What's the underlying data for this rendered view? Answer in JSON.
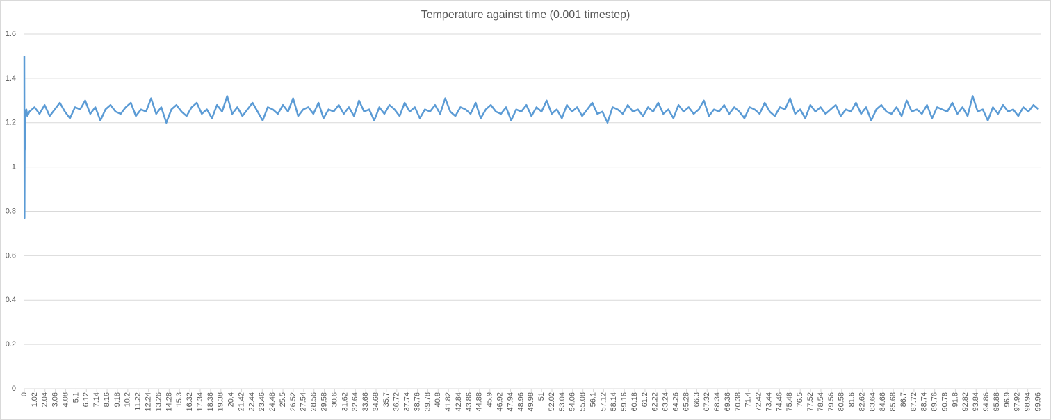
{
  "chart_data": {
    "type": "line",
    "title": "Temperature against time (0.001 timestep)",
    "color": "#5b9bd5",
    "grid": true,
    "ylim": [
      0,
      1.6
    ],
    "yticks": [
      0,
      0.2,
      0.4,
      0.6,
      0.8,
      1,
      1.2,
      1.4,
      1.6
    ],
    "xlim": [
      0,
      100.2
    ],
    "xticks": [
      0,
      1.02,
      2.04,
      3.06,
      4.08,
      5.1,
      6.12,
      7.14,
      8.16,
      9.18,
      10.2,
      11.22,
      12.24,
      13.26,
      14.28,
      15.3,
      16.32,
      17.34,
      18.36,
      19.38,
      20.4,
      21.42,
      22.44,
      23.46,
      24.48,
      25.5,
      26.52,
      27.54,
      28.56,
      29.58,
      30.6,
      31.62,
      32.64,
      33.66,
      34.68,
      35.7,
      36.72,
      37.74,
      38.76,
      39.78,
      40.8,
      41.82,
      42.84,
      43.86,
      44.88,
      45.9,
      46.92,
      47.94,
      48.96,
      49.98,
      51,
      52.02,
      53.04,
      54.06,
      55.08,
      56.1,
      57.12,
      58.14,
      59.16,
      60.18,
      61.2,
      62.22,
      63.24,
      64.26,
      65.28,
      66.3,
      67.32,
      68.34,
      69.36,
      70.38,
      71.4,
      72.42,
      73.44,
      74.46,
      75.48,
      76.5,
      77.52,
      78.54,
      79.56,
      80.58,
      81.6,
      82.62,
      83.64,
      84.66,
      85.68,
      86.7,
      87.72,
      88.74,
      89.76,
      90.78,
      91.8,
      92.82,
      93.84,
      94.86,
      95.88,
      96.9,
      97.92,
      98.94,
      99.96
    ],
    "x": [
      0,
      0.02,
      0.04,
      0.06,
      0.08,
      0.12,
      0.2,
      0.3,
      0.5,
      1,
      1.5,
      2,
      2.5,
      3,
      3.5,
      4,
      4.5,
      5,
      5.5,
      6,
      6.5,
      7,
      7.5,
      8,
      8.5,
      9,
      9.5,
      10,
      10.5,
      11,
      11.5,
      12,
      12.5,
      13,
      13.5,
      14,
      14.5,
      15,
      15.5,
      16,
      16.5,
      17,
      17.5,
      18,
      18.5,
      19,
      19.5,
      20,
      20.5,
      21,
      21.5,
      22,
      22.5,
      23,
      23.5,
      24,
      24.5,
      25,
      25.5,
      26,
      26.5,
      27,
      27.5,
      28,
      28.5,
      29,
      29.5,
      30,
      30.5,
      31,
      31.5,
      32,
      32.5,
      33,
      33.5,
      34,
      34.5,
      35,
      35.5,
      36,
      36.5,
      37,
      37.5,
      38,
      38.5,
      39,
      39.5,
      40,
      40.5,
      41,
      41.5,
      42,
      42.5,
      43,
      43.5,
      44,
      44.5,
      45,
      45.5,
      46,
      46.5,
      47,
      47.5,
      48,
      48.5,
      49,
      49.5,
      50,
      50.5,
      51,
      51.5,
      52,
      52.5,
      53,
      53.5,
      54,
      54.5,
      55,
      55.5,
      56,
      56.5,
      57,
      57.5,
      58,
      58.5,
      59,
      59.5,
      60,
      60.5,
      61,
      61.5,
      62,
      62.5,
      63,
      63.5,
      64,
      64.5,
      65,
      65.5,
      66,
      66.5,
      67,
      67.5,
      68,
      68.5,
      69,
      69.5,
      70,
      70.5,
      71,
      71.5,
      72,
      72.5,
      73,
      73.5,
      74,
      74.5,
      75,
      75.5,
      76,
      76.5,
      77,
      77.5,
      78,
      78.5,
      79,
      79.5,
      80,
      80.5,
      81,
      81.5,
      82,
      82.5,
      83,
      83.5,
      84,
      84.5,
      85,
      85.5,
      86,
      86.5,
      87,
      87.5,
      88,
      88.5,
      89,
      89.5,
      90,
      90.5,
      91,
      91.5,
      92,
      92.5,
      93,
      93.5,
      94,
      94.5,
      95,
      95.5,
      96,
      96.5,
      97,
      97.5,
      98,
      98.5,
      99,
      99.5,
      100
    ],
    "values": [
      1.5,
      0.77,
      1.1,
      1.22,
      1.08,
      1.24,
      1.26,
      1.23,
      1.25,
      1.27,
      1.24,
      1.28,
      1.23,
      1.26,
      1.29,
      1.25,
      1.22,
      1.27,
      1.26,
      1.3,
      1.24,
      1.27,
      1.21,
      1.26,
      1.28,
      1.25,
      1.24,
      1.27,
      1.29,
      1.23,
      1.26,
      1.25,
      1.31,
      1.24,
      1.27,
      1.2,
      1.26,
      1.28,
      1.25,
      1.23,
      1.27,
      1.29,
      1.24,
      1.26,
      1.22,
      1.28,
      1.25,
      1.32,
      1.24,
      1.27,
      1.23,
      1.26,
      1.29,
      1.25,
      1.21,
      1.27,
      1.26,
      1.24,
      1.28,
      1.25,
      1.31,
      1.23,
      1.26,
      1.27,
      1.24,
      1.29,
      1.22,
      1.26,
      1.25,
      1.28,
      1.24,
      1.27,
      1.23,
      1.3,
      1.25,
      1.26,
      1.21,
      1.27,
      1.24,
      1.28,
      1.26,
      1.23,
      1.29,
      1.25,
      1.27,
      1.22,
      1.26,
      1.25,
      1.28,
      1.24,
      1.31,
      1.25,
      1.23,
      1.27,
      1.26,
      1.24,
      1.29,
      1.22,
      1.26,
      1.28,
      1.25,
      1.24,
      1.27,
      1.21,
      1.26,
      1.25,
      1.28,
      1.23,
      1.27,
      1.25,
      1.3,
      1.24,
      1.26,
      1.22,
      1.28,
      1.25,
      1.27,
      1.23,
      1.26,
      1.29,
      1.24,
      1.25,
      1.2,
      1.27,
      1.26,
      1.24,
      1.28,
      1.25,
      1.26,
      1.23,
      1.27,
      1.25,
      1.29,
      1.24,
      1.26,
      1.22,
      1.28,
      1.25,
      1.27,
      1.24,
      1.26,
      1.3,
      1.23,
      1.26,
      1.25,
      1.28,
      1.24,
      1.27,
      1.25,
      1.22,
      1.27,
      1.26,
      1.24,
      1.29,
      1.25,
      1.23,
      1.27,
      1.26,
      1.31,
      1.24,
      1.26,
      1.22,
      1.28,
      1.25,
      1.27,
      1.24,
      1.26,
      1.28,
      1.23,
      1.26,
      1.25,
      1.29,
      1.24,
      1.27,
      1.21,
      1.26,
      1.28,
      1.25,
      1.24,
      1.27,
      1.23,
      1.3,
      1.25,
      1.26,
      1.24,
      1.28,
      1.22,
      1.27,
      1.26,
      1.25,
      1.29,
      1.24,
      1.27,
      1.23,
      1.32,
      1.25,
      1.26,
      1.21,
      1.27,
      1.24,
      1.28,
      1.25,
      1.26,
      1.23,
      1.27,
      1.25,
      1.28,
      1.26
    ]
  }
}
